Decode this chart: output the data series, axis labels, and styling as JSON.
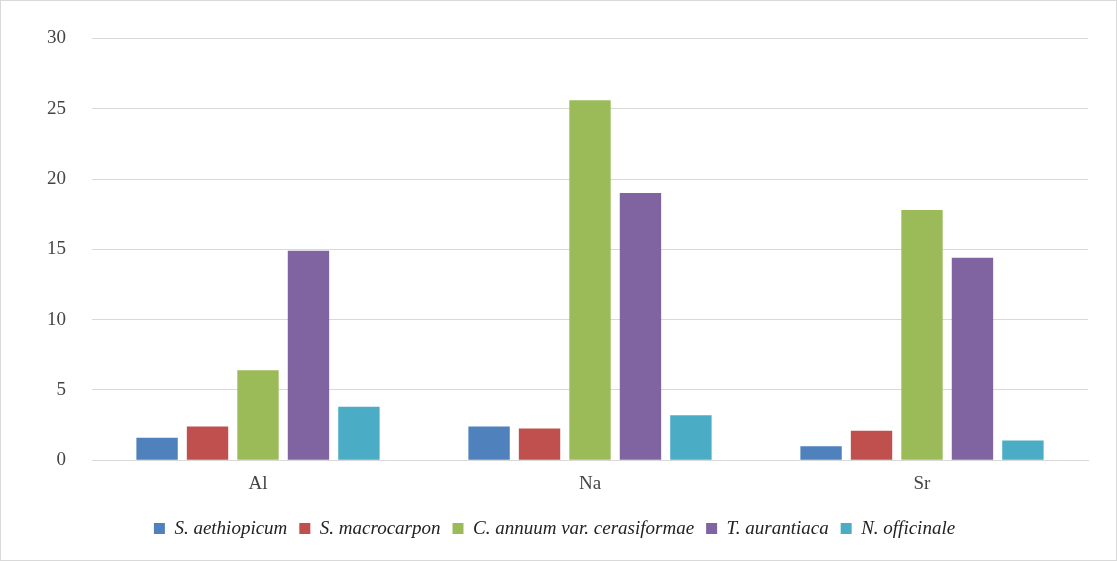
{
  "chart_data": {
    "type": "bar",
    "categories": [
      "Al",
      "Na",
      "Sr"
    ],
    "series": [
      {
        "name": "S. aethiopicum",
        "color": "#4f81bd",
        "values": [
          1.6,
          2.4,
          1.0
        ]
      },
      {
        "name": "S. macrocarpon",
        "color": "#c0504d",
        "values": [
          2.4,
          2.25,
          2.1
        ]
      },
      {
        "name": "C. annuum var. cerasiformae",
        "color": "#9bbb59",
        "values": [
          6.4,
          25.6,
          17.8
        ]
      },
      {
        "name": "T. aurantiaca",
        "color": "#8064a2",
        "values": [
          14.9,
          19.0,
          14.4
        ]
      },
      {
        "name": "N. officinale",
        "color": "#4bacc6",
        "values": [
          3.8,
          3.2,
          1.4
        ]
      }
    ],
    "ylim": [
      0,
      30
    ],
    "yticks": [
      0,
      5,
      10,
      15,
      20,
      25,
      30
    ],
    "grid": "y",
    "legend": "bottom"
  }
}
